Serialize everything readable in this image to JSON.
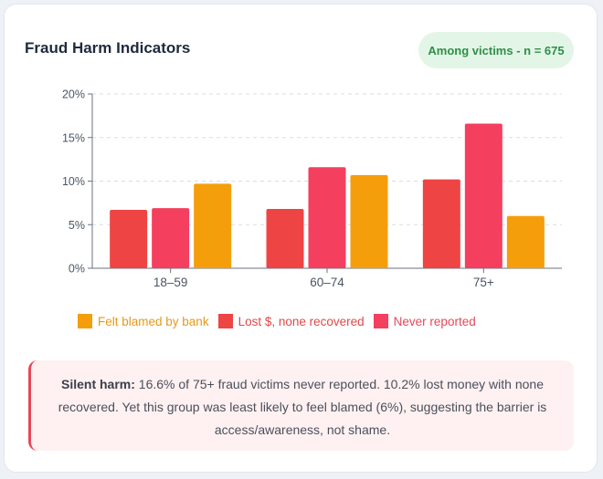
{
  "card": {
    "title": "Fraud Harm Indicators",
    "badge": "Among victims - n = 675"
  },
  "chart_data": {
    "type": "bar",
    "categories": [
      "18–59",
      "60–74",
      "75+"
    ],
    "ylim": [
      0,
      20
    ],
    "yticks": [
      0,
      5,
      10,
      15,
      20
    ],
    "ytick_labels": [
      "0%",
      "5%",
      "10%",
      "15%",
      "20%"
    ],
    "grid": true,
    "legend_position": "bottom",
    "series": [
      {
        "name": "Lost $, none recovered",
        "color": "#ef4444",
        "values": [
          6.7,
          6.8,
          10.2
        ]
      },
      {
        "name": "Never reported",
        "color": "#f43f5e",
        "values": [
          6.9,
          11.6,
          16.6
        ]
      },
      {
        "name": "Felt blamed by bank",
        "color": "#f59e0b",
        "values": [
          9.7,
          10.7,
          6.0
        ]
      }
    ],
    "legend_order": [
      {
        "name": "Felt blamed by bank",
        "color": "#f59e0b",
        "text_color": "#e59a1a"
      },
      {
        "name": "Lost $, none recovered",
        "color": "#ef4444",
        "text_color": "#e04848"
      },
      {
        "name": "Never reported",
        "color": "#f43f5e",
        "text_color": "#e8475a"
      }
    ]
  },
  "callout": {
    "lead": "Silent harm:",
    "body": " 16.6% of 75+ fraud victims never reported. 10.2% lost money with none recovered. Yet this group was least likely to feel blamed (6%), suggesting the barrier is access/awareness, not shame."
  }
}
